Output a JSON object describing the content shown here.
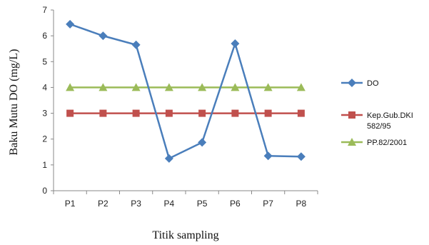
{
  "chart_data": {
    "type": "line",
    "title": "",
    "xlabel": "Titik sampling",
    "ylabel": "Baku Mutu DO (mg/L)",
    "categories": [
      "P1",
      "P2",
      "P3",
      "P4",
      "P5",
      "P6",
      "P7",
      "P8"
    ],
    "ylim": [
      0,
      7
    ],
    "yticks": [
      0,
      1,
      2,
      3,
      4,
      5,
      6,
      7
    ],
    "grid": false,
    "legend_position": "right",
    "series": [
      {
        "name": "DO",
        "legend_lines": [
          "DO"
        ],
        "color": "#4a7ebb",
        "marker": "diamond",
        "values": [
          6.45,
          6.0,
          5.65,
          1.25,
          1.87,
          5.7,
          1.35,
          1.32
        ]
      },
      {
        "name": "Kep.Gub.DKI 582/95",
        "legend_lines": [
          "Kep.Gub.DKI",
          "582/95"
        ],
        "color": "#c0504d",
        "marker": "square",
        "values": [
          3,
          3,
          3,
          3,
          3,
          3,
          3,
          3
        ]
      },
      {
        "name": "PP.82/2001",
        "legend_lines": [
          "PP.82/2001"
        ],
        "color": "#9bbb59",
        "marker": "triangle",
        "values": [
          4,
          4,
          4,
          4,
          4,
          4,
          4,
          4
        ]
      }
    ]
  }
}
